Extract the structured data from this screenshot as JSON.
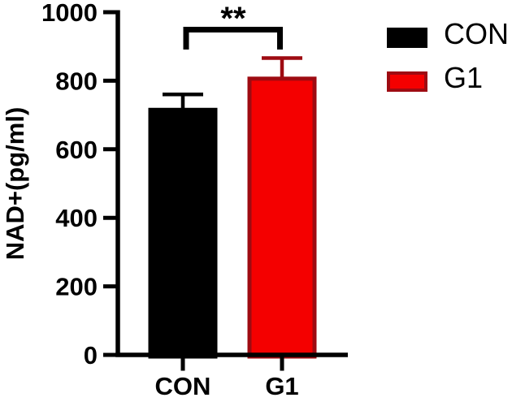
{
  "figure": {
    "significance_label": "**"
  },
  "legend": {
    "position": "top-right",
    "items": [
      {
        "label": "CON",
        "fill": "#000000",
        "border": "#000000"
      },
      {
        "label": "G1",
        "fill": "#f40000",
        "border": "#9e0b12"
      }
    ]
  },
  "chart_data": {
    "type": "bar",
    "title": "",
    "xlabel": "",
    "ylabel": "NAD+(pg/ml)",
    "categories": [
      "CON",
      "G1"
    ],
    "series": [
      {
        "name": "CON",
        "value": 715,
        "error_sd": 45,
        "fill": "#000000",
        "border": "#000000",
        "error_color": "#000000"
      },
      {
        "name": "G1",
        "value": 806,
        "error_sd": 60,
        "fill": "#f40000",
        "border": "#9e0b12",
        "error_color": "#9e0b12"
      }
    ],
    "ylim": [
      0,
      1000
    ],
    "yticks": [
      0,
      200,
      400,
      600,
      800,
      1000
    ],
    "error_bars": "upper SD only",
    "significance": {
      "label": "**",
      "between": [
        "CON",
        "G1"
      ]
    },
    "legend_position": "top-right",
    "grid": false,
    "bar_color_note": "CON solid black; G1 bright red fill with dark red border"
  }
}
